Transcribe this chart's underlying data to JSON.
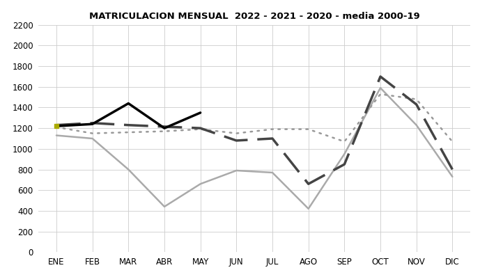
{
  "title": "MATRICULACION MENSUAL  2022 - 2021 - 2020 - media 2000-19",
  "months": [
    "ENE",
    "FEB",
    "MAR",
    "ABR",
    "MAY",
    "JUN",
    "JUL",
    "AGO",
    "SEP",
    "OCT",
    "NOV",
    "DIC"
  ],
  "series_2022": [
    1220,
    1240,
    1440,
    1200,
    1350,
    null,
    null,
    null,
    null,
    null,
    null,
    null
  ],
  "series_2021": [
    1230,
    1250,
    1230,
    1215,
    1200,
    1080,
    1100,
    660,
    850,
    1700,
    1430,
    800
  ],
  "series_2020": [
    1130,
    1100,
    800,
    440,
    660,
    790,
    770,
    420,
    950,
    1590,
    1230,
    730
  ],
  "series_media": [
    1210,
    1150,
    1160,
    1170,
    1190,
    1150,
    1190,
    1190,
    1070,
    1530,
    1480,
    1070
  ],
  "ylim": [
    0,
    2200
  ],
  "yticks": [
    0,
    200,
    400,
    600,
    800,
    1000,
    1200,
    1400,
    1600,
    1800,
    2000,
    2200
  ],
  "color_2022": "#000000",
  "color_2021": "#444444",
  "color_2020": "#aaaaaa",
  "color_media": "#999999",
  "background_color": "#ffffff",
  "grid_color": "#cccccc"
}
